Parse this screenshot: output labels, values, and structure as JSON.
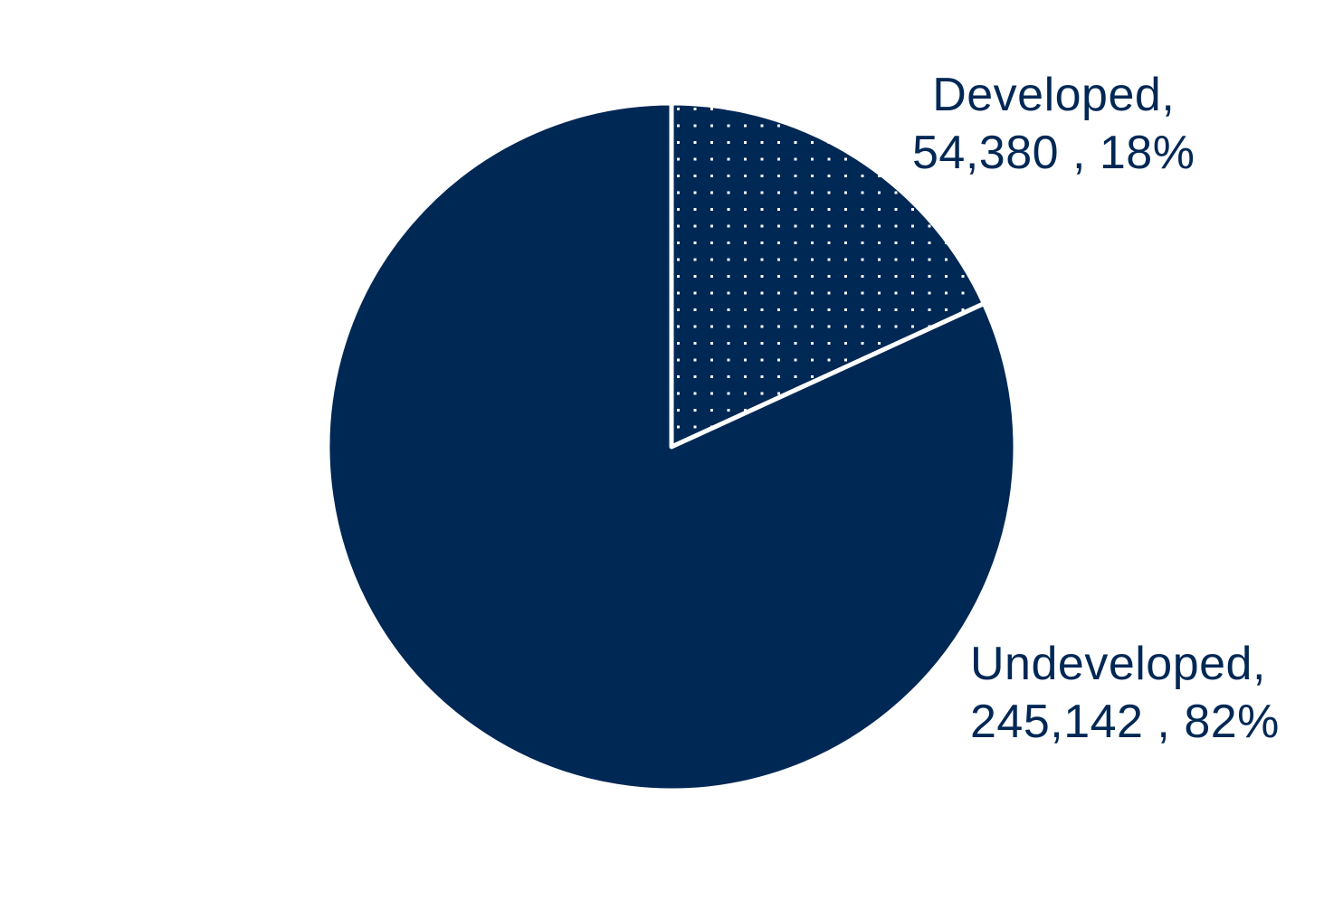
{
  "chart_data": {
    "type": "pie",
    "start_angle": "12 o'clock",
    "direction": "clockwise",
    "slices": [
      {
        "name": "Developed",
        "value": 54380,
        "value_text": "54,380",
        "percent_text": "18%",
        "color": "#002855",
        "pattern": "dotted"
      },
      {
        "name": "Undeveloped",
        "value": 245142,
        "value_text": "245,142",
        "percent_text": "82%",
        "color": "#002855",
        "pattern": "solid"
      }
    ],
    "legend": "none",
    "separator_color": "#ffffff"
  }
}
